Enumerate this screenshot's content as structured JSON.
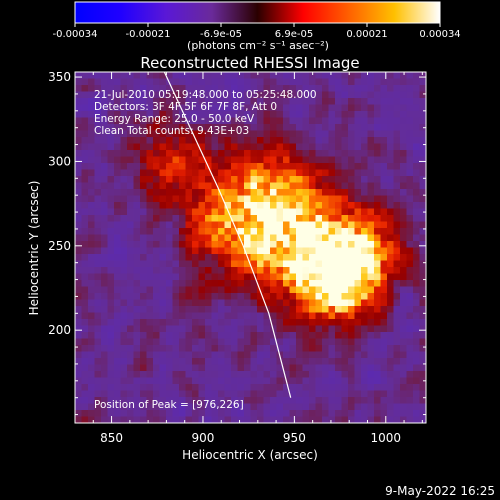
{
  "chart_data": {
    "type": "heatmap",
    "title": "Reconstructed RHESSI Image",
    "xlabel": "Heliocentric X (arcsec)",
    "ylabel": "Heliocentric Y (arcsec)",
    "xlim": [
      830,
      1022
    ],
    "ylim": [
      145,
      353
    ],
    "x_ticks": [
      850,
      900,
      950,
      1000
    ],
    "y_ticks": [
      200,
      250,
      300,
      350
    ],
    "colorbar": {
      "ticks": [
        "-0.00034",
        "-0.00021",
        "-6.9e-05",
        "6.9e-05",
        "0.00021",
        "0.00034"
      ],
      "unit_label": "(photons cm⁻² s⁻¹ asec⁻²)",
      "range": [
        -0.00034,
        0.00034
      ],
      "colors": [
        "#0000ff",
        "#2000ff",
        "#5a18d6",
        "#6a2a9a",
        "#2a0000",
        "#ff0000",
        "#ff6000",
        "#ffc000",
        "#ffffff"
      ]
    },
    "annotations": [
      "21-Jul-2010 05:19:48.000 to 05:25:48.000",
      "Detectors: 3F 4F 5F 6F 7F 8F, Att 0",
      "Energy Range: 25.0 - 50.0 keV",
      "Clean     Total counts: 9.43E+03"
    ],
    "peak_text": "Position of Peak = [976,226]",
    "peak": [
      976,
      226
    ],
    "limb_curve": [
      [
        878,
        355
      ],
      [
        893,
        320
      ],
      [
        908,
        285
      ],
      [
        922,
        250
      ],
      [
        936,
        210
      ],
      [
        948,
        160
      ]
    ],
    "emission_sources": [
      {
        "x": 955,
        "y": 250,
        "sigma": 22,
        "amp": 0.8
      },
      {
        "x": 976,
        "y": 226,
        "sigma": 14,
        "amp": 0.95
      },
      {
        "x": 935,
        "y": 280,
        "sigma": 20,
        "amp": 0.55
      },
      {
        "x": 912,
        "y": 260,
        "sigma": 18,
        "amp": 0.45
      },
      {
        "x": 988,
        "y": 250,
        "sigma": 14,
        "amp": 0.5
      },
      {
        "x": 880,
        "y": 300,
        "sigma": 16,
        "amp": 0.35
      }
    ]
  },
  "footer_date": "9-May-2022 16:25"
}
